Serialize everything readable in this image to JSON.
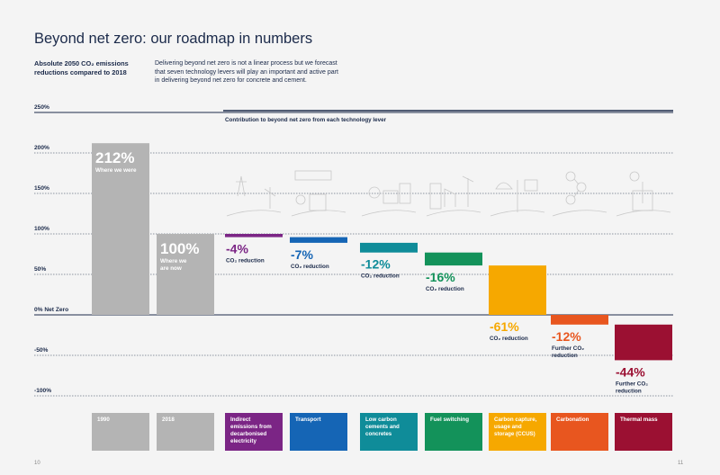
{
  "header": {
    "title": "Beyond net zero: our roadmap in numbers",
    "subtitle": "Absolute 2050 CO₂ emissions reductions compared to 2018",
    "description": "Delivering beyond net zero is not a linear process but we forecast that seven technology levers will play an important and active part in delivering beyond net zero for concrete and cement.",
    "contribution_label": "Contribution to beyond net zero from each technology lever"
  },
  "pages": {
    "left": "10",
    "right": "11"
  },
  "chart_data": {
    "type": "bar",
    "y_ticks": [
      "250%",
      "200%",
      "150%",
      "100%",
      "50%",
      "0% Net Zero",
      "-50%",
      "-100%"
    ],
    "ylim": [
      -100,
      250
    ],
    "categories": [
      "1990",
      "2018",
      "Indirect emissions from decarbonised electricity",
      "Transport",
      "Low carbon cements and concretes",
      "Fuel switching",
      "Carbon capture, usage and storage (CCUS)",
      "Carbonation",
      "Thermal mass"
    ],
    "totals": [
      {
        "category": "1990",
        "value": 212,
        "label": "212%",
        "caption": "Where we were"
      },
      {
        "category": "2018",
        "value": 100,
        "label": "100%",
        "caption": "Where we are now"
      }
    ],
    "levers": [
      {
        "category": "Indirect emissions from decarbonised electricity",
        "value": -4,
        "label": "-4%",
        "caption": "CO₂ reduction",
        "color": "#7b2585"
      },
      {
        "category": "Transport",
        "value": -7,
        "label": "-7%",
        "caption": "CO₂ reduction",
        "color": "#1565b5"
      },
      {
        "category": "Low carbon cements and concretes",
        "value": -12,
        "label": "-12%",
        "caption": "CO₂ reduction",
        "color": "#0f8c99"
      },
      {
        "category": "Fuel switching",
        "value": -16,
        "label": "-16%",
        "caption": "CO₂ reduction",
        "color": "#13925a"
      },
      {
        "category": "Carbon capture, usage and storage (CCUS)",
        "value": -61,
        "label": "-61%",
        "caption": "CO₂ reduction",
        "color": "#f6a800"
      },
      {
        "category": "Carbonation",
        "value": -12,
        "label": "-12%",
        "caption": "Further CO₂ reduction",
        "color": "#e8561f"
      },
      {
        "category": "Thermal mass",
        "value": -44,
        "label": "-44%",
        "caption": "Further CO₂ reduction",
        "color": "#9b1032"
      }
    ]
  },
  "category_labels": [
    {
      "text": "1990",
      "color": "#b4b4b4"
    },
    {
      "text": "2018",
      "color": "#b4b4b4"
    },
    {
      "text": "Indirect emissions from decarbonised electricity",
      "color": "#7b2585"
    },
    {
      "text": "Transport",
      "color": "#1565b5"
    },
    {
      "text": "Low carbon cements and concretes",
      "color": "#0f8c99"
    },
    {
      "text": "Fuel switching",
      "color": "#13925a"
    },
    {
      "text": "Carbon capture, usage and storage (CCUS)",
      "color": "#f6a800"
    },
    {
      "text": "Carbonation",
      "color": "#e8561f"
    },
    {
      "text": "Thermal mass",
      "color": "#9b1032"
    }
  ],
  "colors": {
    "navy": "#1b2a4a",
    "grey_bar": "#b4b4b4",
    "icon": "#c9c9c9"
  },
  "icons": [
    "pylon-wind-icon",
    "truck-train-icon",
    "cement-mixer-icon",
    "factory-wind-icon",
    "ccus-icon",
    "carbonation-icon",
    "thermal-building-icon"
  ]
}
